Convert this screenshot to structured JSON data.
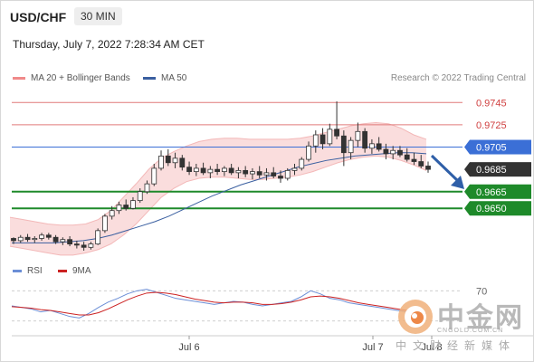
{
  "header": {
    "symbol": "USD/CHF",
    "interval": "30 MIN",
    "datetime": "Thursday, July 7, 2022 7:28:34 AM CET"
  },
  "legend": {
    "bollinger_label": "MA 20 + Bollinger Bands",
    "ma50_label": "MA 50",
    "credit": "Research © 2022 Trading Central",
    "rsi_label": "RSI",
    "ma9_label": "9MA"
  },
  "colors": {
    "bollinger": "#f08a8a",
    "ma50": "#3a5fa0",
    "resistance": "#e07a7a",
    "pivot": "#3b6fd6",
    "support": "#1e8a2a",
    "rsi": "#6b8ed6",
    "rsi_ma": "#cc2222",
    "price_last": "#333333",
    "arrow": "#2f5fa8"
  },
  "watermark": {
    "logo_text": "中金网",
    "url": "CNGOLD.COM.CN",
    "sub": "中文财经新媒体"
  },
  "chart_data": {
    "type": "candlestick",
    "y_range": [
      0.9612,
      0.9755
    ],
    "levels": [
      {
        "value": 0.9745,
        "label": "0.9745",
        "kind": "resistance"
      },
      {
        "value": 0.9725,
        "label": "0.9725",
        "kind": "resistance"
      },
      {
        "value": 0.9705,
        "label": "0.9705",
        "kind": "pivot"
      },
      {
        "value": 0.9685,
        "label": "0.9685",
        "kind": "last"
      },
      {
        "value": 0.9665,
        "label": "0.9665",
        "kind": "support"
      },
      {
        "value": 0.965,
        "label": "0.9650",
        "kind": "support"
      }
    ],
    "x_labels": [
      "Jul 6",
      "Jul 7",
      "Jul 8"
    ],
    "rsi_level_label": "70",
    "candles": [
      [
        0.9623,
        0.9624,
        0.9618,
        0.9621
      ],
      [
        0.9621,
        0.9626,
        0.9619,
        0.9624
      ],
      [
        0.9624,
        0.9627,
        0.962,
        0.9622
      ],
      [
        0.9622,
        0.9625,
        0.9619,
        0.9623
      ],
      [
        0.9623,
        0.9628,
        0.9621,
        0.9626
      ],
      [
        0.9626,
        0.9628,
        0.9622,
        0.9624
      ],
      [
        0.9624,
        0.9626,
        0.9618,
        0.962
      ],
      [
        0.962,
        0.9624,
        0.9617,
        0.9622
      ],
      [
        0.9622,
        0.9625,
        0.9616,
        0.9618
      ],
      [
        0.9618,
        0.9621,
        0.9614,
        0.9617
      ],
      [
        0.9617,
        0.962,
        0.9612,
        0.9615
      ],
      [
        0.9615,
        0.962,
        0.9613,
        0.9618
      ],
      [
        0.9618,
        0.9632,
        0.9617,
        0.963
      ],
      [
        0.963,
        0.9645,
        0.9628,
        0.9643
      ],
      [
        0.9643,
        0.9652,
        0.964,
        0.9648
      ],
      [
        0.9648,
        0.9656,
        0.9645,
        0.9653
      ],
      [
        0.9653,
        0.9658,
        0.9648,
        0.965
      ],
      [
        0.965,
        0.966,
        0.9649,
        0.9657
      ],
      [
        0.9657,
        0.9668,
        0.9655,
        0.9665
      ],
      [
        0.9665,
        0.9675,
        0.9663,
        0.9672
      ],
      [
        0.9672,
        0.969,
        0.967,
        0.9686
      ],
      [
        0.9686,
        0.9702,
        0.9684,
        0.9697
      ],
      [
        0.9697,
        0.9703,
        0.9688,
        0.9691
      ],
      [
        0.9691,
        0.97,
        0.9686,
        0.9695
      ],
      [
        0.9695,
        0.9698,
        0.9684,
        0.9687
      ],
      [
        0.9687,
        0.9692,
        0.968,
        0.9683
      ],
      [
        0.9683,
        0.969,
        0.9679,
        0.9686
      ],
      [
        0.9686,
        0.9691,
        0.968,
        0.9682
      ],
      [
        0.9682,
        0.9688,
        0.9677,
        0.9685
      ],
      [
        0.9685,
        0.969,
        0.968,
        0.9683
      ],
      [
        0.9683,
        0.9688,
        0.9679,
        0.9686
      ],
      [
        0.9686,
        0.969,
        0.968,
        0.9682
      ],
      [
        0.9682,
        0.9687,
        0.9677,
        0.9684
      ],
      [
        0.9684,
        0.9688,
        0.9678,
        0.9681
      ],
      [
        0.9681,
        0.9686,
        0.9676,
        0.9683
      ],
      [
        0.9683,
        0.9688,
        0.9677,
        0.968
      ],
      [
        0.968,
        0.9686,
        0.9675,
        0.9682
      ],
      [
        0.9682,
        0.9687,
        0.9677,
        0.9679
      ],
      [
        0.9679,
        0.9684,
        0.9673,
        0.9677
      ],
      [
        0.9677,
        0.9686,
        0.9675,
        0.9684
      ],
      [
        0.9684,
        0.969,
        0.968,
        0.9686
      ],
      [
        0.9686,
        0.9696,
        0.9684,
        0.9694
      ],
      [
        0.9694,
        0.971,
        0.9692,
        0.9706
      ],
      [
        0.9706,
        0.972,
        0.97,
        0.9716
      ],
      [
        0.9716,
        0.9722,
        0.9703,
        0.9708
      ],
      [
        0.9708,
        0.9726,
        0.9706,
        0.9721
      ],
      [
        0.9721,
        0.9746,
        0.9712,
        0.9715
      ],
      [
        0.9715,
        0.972,
        0.9688,
        0.97
      ],
      [
        0.97,
        0.9714,
        0.9694,
        0.9711
      ],
      [
        0.9711,
        0.9727,
        0.9705,
        0.9719
      ],
      [
        0.9719,
        0.9722,
        0.97,
        0.9704
      ],
      [
        0.9704,
        0.9712,
        0.9699,
        0.9708
      ],
      [
        0.9708,
        0.9714,
        0.9701,
        0.9703
      ],
      [
        0.9703,
        0.9708,
        0.9694,
        0.9699
      ],
      [
        0.9699,
        0.9706,
        0.9694,
        0.9702
      ],
      [
        0.9702,
        0.9706,
        0.9696,
        0.9698
      ],
      [
        0.9698,
        0.9704,
        0.9692,
        0.9694
      ],
      [
        0.9694,
        0.97,
        0.9689,
        0.9692
      ],
      [
        0.9692,
        0.9698,
        0.9686,
        0.9688
      ],
      [
        0.9688,
        0.9692,
        0.9682,
        0.9685
      ]
    ],
    "bb_upper": [
      0.9642,
      0.964,
      0.9638,
      0.9636,
      0.9635,
      0.9635,
      0.9636,
      0.964,
      0.9648,
      0.966,
      0.9672,
      0.9685,
      0.9695,
      0.9701,
      0.9706,
      0.971,
      0.9712,
      0.9713,
      0.9713,
      0.9712,
      0.9712,
      0.9712,
      0.9712,
      0.9713,
      0.9715,
      0.9718,
      0.9721,
      0.9724,
      0.9726,
      0.9727,
      0.9726,
      0.9722,
      0.9716,
      0.9712
    ],
    "bb_lower": [
      0.9616,
      0.9614,
      0.9612,
      0.961,
      0.9608,
      0.9608,
      0.961,
      0.9613,
      0.9618,
      0.9626,
      0.9636,
      0.9648,
      0.966,
      0.9668,
      0.9674,
      0.9677,
      0.9678,
      0.9678,
      0.9677,
      0.9676,
      0.9676,
      0.9677,
      0.9678,
      0.968,
      0.9683,
      0.9687,
      0.9691,
      0.9694,
      0.9696,
      0.9697,
      0.9696,
      0.9693,
      0.9689,
      0.9684
    ],
    "ma50": [
      0.9619,
      0.9619,
      0.9619,
      0.9619,
      0.962,
      0.9621,
      0.9623,
      0.9626,
      0.963,
      0.9634,
      0.9638,
      0.9643,
      0.9649,
      0.9655,
      0.9661,
      0.9666,
      0.9671,
      0.9675,
      0.9679,
      0.9683,
      0.9687,
      0.969,
      0.9693,
      0.9695,
      0.9697,
      0.9698,
      0.9699,
      0.97,
      0.97,
      0.9699
    ],
    "rsi": [
      50,
      48,
      46,
      42,
      44,
      40,
      36,
      34,
      40,
      48,
      55,
      60,
      66,
      70,
      72,
      68,
      64,
      60,
      58,
      56,
      54,
      52,
      54,
      56,
      55,
      52,
      50,
      52,
      54,
      56,
      62,
      70,
      66,
      60,
      58,
      54,
      52,
      50,
      48,
      46,
      44,
      42,
      40,
      38
    ],
    "rsi_ma": [
      49,
      48,
      47,
      45,
      44,
      42,
      40,
      38,
      38,
      41,
      46,
      52,
      58,
      63,
      67,
      68,
      67,
      65,
      62,
      59,
      57,
      55,
      54,
      55,
      55,
      54,
      52,
      52,
      53,
      55,
      58,
      62,
      63,
      62,
      60,
      57,
      54,
      52,
      50,
      48,
      46,
      44,
      42,
      40
    ]
  }
}
